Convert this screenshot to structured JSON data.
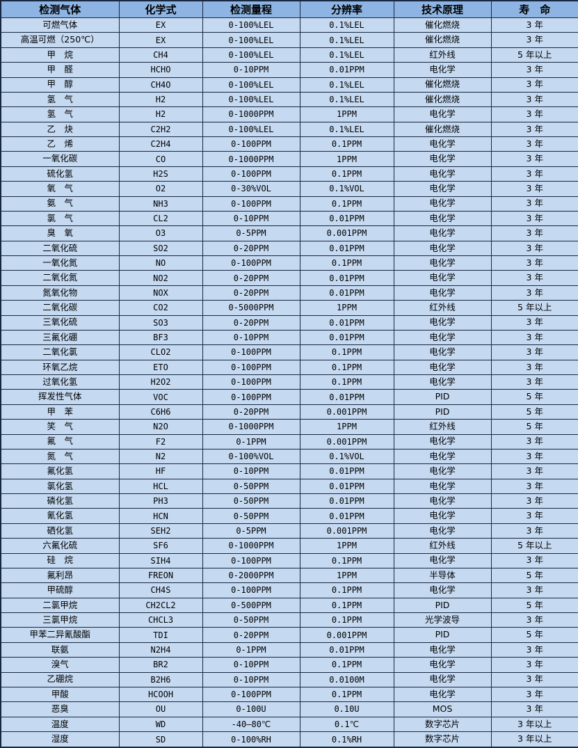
{
  "colors": {
    "header_bg": "#8db4e2",
    "row_bg": "#c5d9f1",
    "border": "#17273f",
    "text": "#000000"
  },
  "table": {
    "headers": [
      "检测气体",
      "化学式",
      "检测量程",
      "分辨率",
      "技术原理",
      "寿　命"
    ],
    "column_keys": [
      "gas-name",
      "formula",
      "range",
      "resolution",
      "principle",
      "lifespan"
    ],
    "rows": [
      [
        "可燃气体",
        "EX",
        "0-100%LEL",
        "0.1%LEL",
        "催化燃烧",
        "3 年"
      ],
      [
        "高温可燃（250℃）",
        "EX",
        "0-100%LEL",
        "0.1%LEL",
        "催化燃烧",
        "3 年"
      ],
      [
        "甲　烷",
        "CH4",
        "0-100%LEL",
        "0.1%LEL",
        "红外线",
        "5 年以上"
      ],
      [
        "甲　醛",
        "HCHO",
        "0-10PPM",
        "0.01PPM",
        "电化学",
        "3 年"
      ],
      [
        "甲　醇",
        "CH4O",
        "0-100%LEL",
        "0.1%LEL",
        "催化燃烧",
        "3 年"
      ],
      [
        "氢　气",
        "H2",
        "0-100%LEL",
        "0.1%LEL",
        "催化燃烧",
        "3 年"
      ],
      [
        "氢　气",
        "H2",
        "0-1000PPM",
        "1PPM",
        "电化学",
        "3 年"
      ],
      [
        "乙　炔",
        "C2H2",
        "0-100%LEL",
        "0.1%LEL",
        "催化燃烧",
        "3 年"
      ],
      [
        "乙　烯",
        "C2H4",
        "0-100PPM",
        "0.1PPM",
        "电化学",
        "3 年"
      ],
      [
        "一氧化碳",
        "CO",
        "0-1000PPM",
        "1PPM",
        "电化学",
        "3 年"
      ],
      [
        "硫化氢",
        "H2S",
        "0-100PPM",
        "0.1PPM",
        "电化学",
        "3 年"
      ],
      [
        "氧　气",
        "O2",
        "0-30%VOL",
        "0.1%VOL",
        "电化学",
        "3 年"
      ],
      [
        "氨　气",
        "NH3",
        "0-100PPM",
        "0.1PPM",
        "电化学",
        "3 年"
      ],
      [
        "氯　气",
        "CL2",
        "0-10PPM",
        "0.01PPM",
        "电化学",
        "3 年"
      ],
      [
        "臭　氧",
        "O3",
        "0-5PPM",
        "0.001PPM",
        "电化学",
        "3 年"
      ],
      [
        "二氧化硫",
        "SO2",
        "0-20PPM",
        "0.01PPM",
        "电化学",
        "3 年"
      ],
      [
        "一氧化氮",
        "NO",
        "0-100PPM",
        "0.1PPM",
        "电化学",
        "3 年"
      ],
      [
        "二氧化氮",
        "NO2",
        "0-20PPM",
        "0.01PPM",
        "电化学",
        "3 年"
      ],
      [
        "氮氧化物",
        "NOX",
        "0-20PPM",
        "0.01PPM",
        "电化学",
        "3 年"
      ],
      [
        "二氧化碳",
        "CO2",
        "0-5000PPM",
        "1PPM",
        "红外线",
        "5 年以上"
      ],
      [
        "三氧化硫",
        "SO3",
        "0-20PPM",
        "0.01PPM",
        "电化学",
        "3 年"
      ],
      [
        "三氟化硼",
        "BF3",
        "0-10PPM",
        "0.01PPM",
        "电化学",
        "3 年"
      ],
      [
        "二氧化氯",
        "CLO2",
        "0-100PPM",
        "0.1PPM",
        "电化学",
        "3 年"
      ],
      [
        "环氧乙烷",
        "ETO",
        "0-100PPM",
        "0.1PPM",
        "电化学",
        "3 年"
      ],
      [
        "过氧化氢",
        "H2O2",
        "0-100PPM",
        "0.1PPM",
        "电化学",
        "3 年"
      ],
      [
        "挥发性气体",
        "VOC",
        "0-100PPM",
        "0.01PPM",
        "PID",
        "5 年"
      ],
      [
        "甲　苯",
        "C6H6",
        "0-20PPM",
        "0.001PPM",
        "PID",
        "5 年"
      ],
      [
        "笑　气",
        "N2O",
        "0-1000PPM",
        "1PPM",
        "红外线",
        "5 年"
      ],
      [
        "氟　气",
        "F2",
        "0-1PPM",
        "0.001PPM",
        "电化学",
        "3 年"
      ],
      [
        "氮　气",
        "N2",
        "0-100%VOL",
        "0.1%VOL",
        "电化学",
        "3 年"
      ],
      [
        "氟化氢",
        "HF",
        "0-10PPM",
        "0.01PPM",
        "电化学",
        "3 年"
      ],
      [
        "氯化氢",
        "HCL",
        "0-50PPM",
        "0.01PPM",
        "电化学",
        "3 年"
      ],
      [
        "磷化氢",
        "PH3",
        "0-50PPM",
        "0.01PPM",
        "电化学",
        "3 年"
      ],
      [
        "氰化氢",
        "HCN",
        "0-50PPM",
        "0.01PPM",
        "电化学",
        "3 年"
      ],
      [
        "硒化氢",
        "SEH2",
        "0-5PPM",
        "0.001PPM",
        "电化学",
        "3 年"
      ],
      [
        "六氟化硫",
        "SF6",
        "0-1000PPM",
        "1PPM",
        "红外线",
        "5 年以上"
      ],
      [
        "硅　烷",
        "SIH4",
        "0-100PPM",
        "0.1PPM",
        "电化学",
        "3 年"
      ],
      [
        "氟利昂",
        "FREON",
        "0-2000PPM",
        "1PPM",
        "半导体",
        "5 年"
      ],
      [
        "甲硫醇",
        "CH4S",
        "0-100PPM",
        "0.1PPM",
        "电化学",
        "3 年"
      ],
      [
        "二氯甲烷",
        "CH2CL2",
        "0-500PPM",
        "0.1PPM",
        "PID",
        "5 年"
      ],
      [
        "三氯甲烷",
        "CHCL3",
        "0-50PPM",
        "0.1PPM",
        "光学波导",
        "3 年"
      ],
      [
        "甲苯二异氰酸酯",
        "TDI",
        "0-20PPM",
        "0.001PPM",
        "PID",
        "5 年"
      ],
      [
        "联氨",
        "N2H4",
        "0-1PPM",
        "0.01PPM",
        "电化学",
        "3 年"
      ],
      [
        "溴气",
        "BR2",
        "0-10PPM",
        "0.1PPM",
        "电化学",
        "3 年"
      ],
      [
        "乙硼烷",
        "B2H6",
        "0-10PPM",
        "0.0100M",
        "电化学",
        "3 年"
      ],
      [
        "甲酸",
        "HCOOH",
        "0-100PPM",
        "0.1PPM",
        "电化学",
        "3 年"
      ],
      [
        "恶臭",
        "OU",
        "0-100U",
        "0.10U",
        "MOS",
        "3 年"
      ],
      [
        "温度",
        "WD",
        "-40—80℃",
        "0.1℃",
        "数字芯片",
        "3 年以上"
      ],
      [
        "湿度",
        "SD",
        "0-100%RH",
        "0.1%RH",
        "数字芯片",
        "3 年以上"
      ]
    ]
  }
}
